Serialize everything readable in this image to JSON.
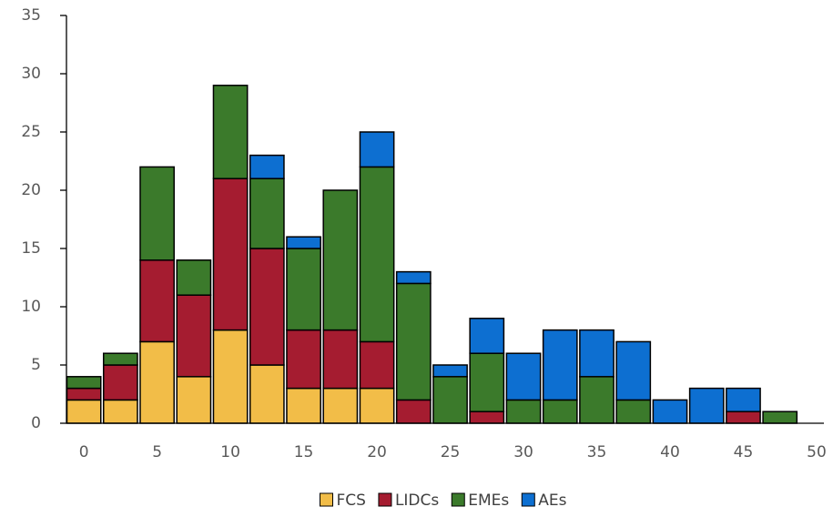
{
  "chart_data": {
    "type": "histogram",
    "stacked": true,
    "bins": [
      -1.25,
      1.25,
      3.75,
      6.25,
      8.75,
      11.25,
      13.75,
      16.25,
      18.75,
      21.25,
      23.75,
      26.25,
      28.75,
      31.25,
      33.75,
      36.25,
      38.75,
      41.25,
      43.75,
      46.25,
      48.75
    ],
    "series": [
      {
        "name": "FCS",
        "color": "#f2bd48",
        "values": [
          2,
          2,
          7,
          4,
          8,
          5,
          3,
          3,
          3,
          0,
          0,
          0,
          0,
          0,
          0,
          0,
          0,
          0,
          0,
          0
        ]
      },
      {
        "name": "LIDCs",
        "color": "#a51c30",
        "values": [
          1,
          3,
          7,
          7,
          13,
          10,
          5,
          5,
          4,
          2,
          0,
          1,
          0,
          0,
          0,
          0,
          0,
          0,
          1,
          0
        ]
      },
      {
        "name": "EMEs",
        "color": "#3b7a2b",
        "values": [
          1,
          1,
          8,
          3,
          8,
          6,
          7,
          12,
          15,
          10,
          4,
          5,
          2,
          2,
          4,
          2,
          0,
          0,
          0,
          1
        ]
      },
      {
        "name": "AEs",
        "color": "#0d6fd1",
        "values": [
          0,
          0,
          0,
          0,
          0,
          2,
          1,
          0,
          3,
          1,
          1,
          3,
          4,
          6,
          4,
          5,
          2,
          3,
          2,
          0
        ]
      }
    ],
    "xlim": [
      -1.25,
      50.5
    ],
    "xticks": [
      0,
      5,
      10,
      15,
      20,
      25,
      30,
      35,
      40,
      45,
      50
    ],
    "ylim": [
      0,
      35
    ],
    "yticks": [
      0,
      5,
      10,
      15,
      20,
      25,
      30,
      35
    ],
    "legend": "bottom"
  }
}
